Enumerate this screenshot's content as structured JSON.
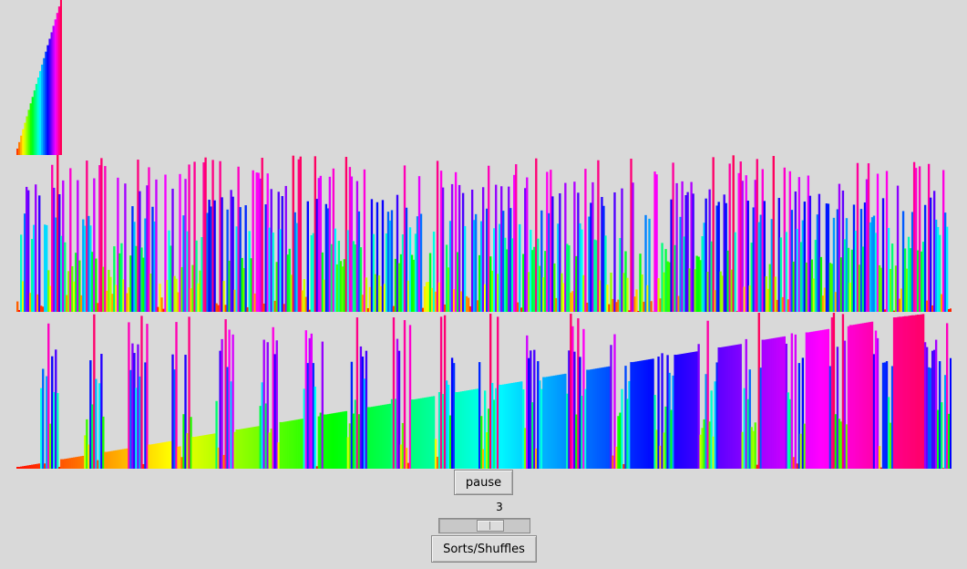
{
  "controls": {
    "pause_label": "pause",
    "speed_value": "3",
    "speed_level": 0.6,
    "sorts_label": "Sorts/Shuffles"
  },
  "chart_data": [
    {
      "type": "bar",
      "description_free": true,
      "panel": "thumbnail",
      "count": 24,
      "values_rule": "ascending 1..count, hue by value",
      "ylim": [
        0,
        24
      ]
    },
    {
      "type": "bar",
      "panel": "shuffled",
      "count": 512,
      "ylim": [
        0,
        512
      ]
    },
    {
      "type": "bar",
      "panel": "merge-progress",
      "count": 512,
      "ylim": [
        0,
        512
      ]
    }
  ],
  "colors": {
    "background": "#d9d9d9",
    "spectrum": "hsl rainbow red-to-red"
  }
}
